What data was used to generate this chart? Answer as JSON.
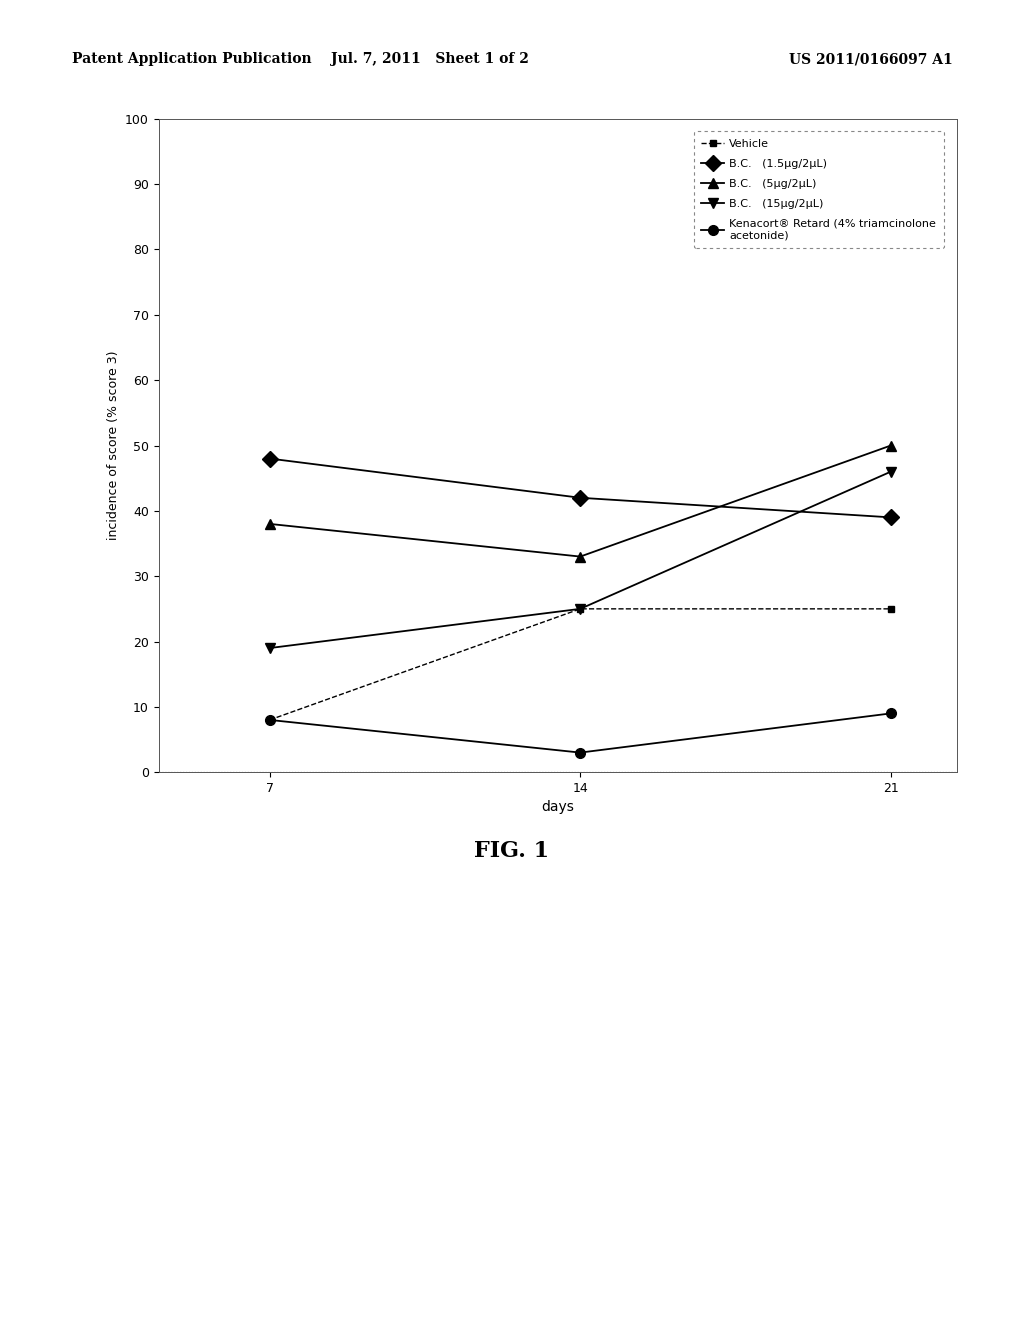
{
  "x": [
    7,
    14,
    21
  ],
  "series": [
    {
      "label": "--■-- Vehicle",
      "y": [
        8,
        25,
        25
      ],
      "marker": "s",
      "markersize": 5,
      "color": "#000000",
      "linewidth": 1.0,
      "linestyle": "--"
    },
    {
      "label": "B.C.   (1.5μg/2μL)",
      "y": [
        48,
        42,
        39
      ],
      "marker": "D",
      "markersize": 8,
      "color": "#000000",
      "linewidth": 1.3,
      "linestyle": "-"
    },
    {
      "label": "B.C.   (5μg/2μL)",
      "y": [
        38,
        33,
        50
      ],
      "marker": "^",
      "markersize": 7,
      "color": "#000000",
      "linewidth": 1.3,
      "linestyle": "-"
    },
    {
      "label": "B.C.   (15μg/2μL)",
      "y": [
        19,
        25,
        46
      ],
      "marker": "v",
      "markersize": 7,
      "color": "#000000",
      "linewidth": 1.3,
      "linestyle": "-"
    },
    {
      "label": "Kenacort® Retard (4% triamcinolone\nacetonide)",
      "y": [
        8,
        3,
        9
      ],
      "marker": "o",
      "markersize": 7,
      "color": "#000000",
      "linewidth": 1.3,
      "linestyle": "-"
    }
  ],
  "xlabel": "days",
  "ylabel": "incidence of score (% score 3)",
  "ylim": [
    0,
    100
  ],
  "yticks": [
    0,
    10,
    20,
    30,
    40,
    50,
    60,
    70,
    80,
    90,
    100
  ],
  "xticks": [
    7,
    14,
    21
  ],
  "header_left": "Patent Application Publication",
  "header_mid": "Jul. 7, 2011   Sheet 1 of 2",
  "header_right": "US 2011/0166097 A1",
  "caption": "FIG. 1",
  "fig_bg_color": "#ffffff"
}
